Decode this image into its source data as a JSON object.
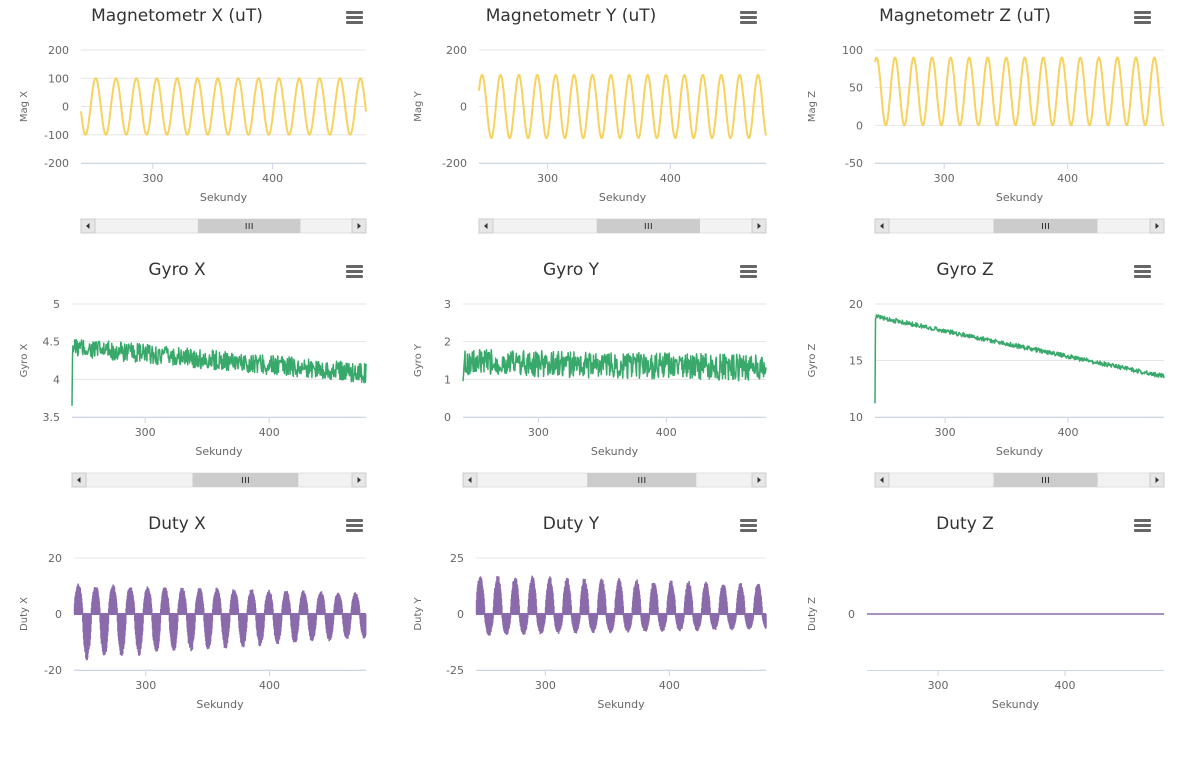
{
  "colors": {
    "magnetometer": "#f7d25e",
    "gyro": "#39a96b",
    "duty": "#8b6bab",
    "scrollbar_thumb": "#cccccc",
    "scrollbar_track": "#f2f2f2"
  },
  "icons": {
    "menu": "hamburger-menu-icon",
    "scroll_left": "arrow-left-icon",
    "scroll_right": "arrow-right-icon",
    "scroll_grip": "grip-icon"
  },
  "chart_data": [
    {
      "id": "magX",
      "type": "line",
      "title": "Magnetometr X (uT)",
      "xlabel": "Sekundy",
      "ylabel": "Mag X",
      "xlim": [
        240,
        478
      ],
      "ylim": [
        -200,
        200
      ],
      "xticks": [
        300,
        400
      ],
      "yticks": [
        -200,
        -100,
        0,
        100,
        200
      ],
      "series": [
        {
          "name": "Mag X",
          "signal": "sine",
          "amplitude": 100,
          "offset": 0,
          "period_s": 17,
          "phase_deg": 190
        }
      ],
      "scrollbar": true
    },
    {
      "id": "magY",
      "type": "line",
      "title": "Magnetometr Y (uT)",
      "xlabel": "Sekundy",
      "ylabel": "Mag Y",
      "xlim": [
        244,
        478
      ],
      "ylim": [
        -200,
        200
      ],
      "xticks": [
        300,
        400
      ],
      "yticks": [
        -200,
        0,
        200
      ],
      "series": [
        {
          "name": "Mag Y",
          "signal": "sine",
          "amplitude": 112,
          "offset": 0,
          "period_s": 15,
          "phase_deg": 30
        }
      ],
      "scrollbar": true
    },
    {
      "id": "magZ",
      "type": "line",
      "title": "Magnetometr Z (uT)",
      "xlabel": "Sekundy",
      "ylabel": "Mag Z",
      "xlim": [
        244,
        478
      ],
      "ylim": [
        -50,
        100
      ],
      "xticks": [
        300,
        400
      ],
      "yticks": [
        -50,
        0,
        50,
        100
      ],
      "series": [
        {
          "name": "Mag Z",
          "signal": "sine",
          "amplitude": 45,
          "offset": 45,
          "period_s": 15,
          "phase_deg": 60
        }
      ],
      "scrollbar": true
    },
    {
      "id": "gyroX",
      "type": "line",
      "title": "Gyro X",
      "xlabel": "Sekundy",
      "ylabel": "Gyro X",
      "xlim": [
        241,
        478
      ],
      "ylim": [
        3.5,
        5
      ],
      "xticks": [
        300,
        400
      ],
      "yticks": [
        3.5,
        4,
        4.5,
        5
      ],
      "series": [
        {
          "name": "Gyro X",
          "signal": "noise",
          "start": 4.42,
          "end": 4.08,
          "noise": 0.13,
          "spike_from": 3.65
        }
      ],
      "scrollbar": true
    },
    {
      "id": "gyroY",
      "type": "line",
      "title": "Gyro Y",
      "xlabel": "Sekundy",
      "ylabel": "Gyro Y",
      "xlim": [
        241,
        478
      ],
      "ylim": [
        0,
        3
      ],
      "xticks": [
        300,
        400
      ],
      "yticks": [
        0,
        1,
        2,
        3
      ],
      "series": [
        {
          "name": "Gyro Y",
          "signal": "noise",
          "start": 1.45,
          "end": 1.3,
          "noise": 0.35,
          "spike_from": 0.95
        }
      ],
      "scrollbar": true
    },
    {
      "id": "gyroZ",
      "type": "line",
      "title": "Gyro Z",
      "xlabel": "Sekundy",
      "ylabel": "Gyro Z",
      "xlim": [
        243,
        478
      ],
      "ylim": [
        10,
        20
      ],
      "xticks": [
        300,
        400
      ],
      "yticks": [
        10,
        15,
        20
      ],
      "series": [
        {
          "name": "Gyro Z",
          "signal": "noise",
          "start": 18.9,
          "end": 13.6,
          "noise": 0.2,
          "spike_from": 11.2
        }
      ],
      "scrollbar": true
    },
    {
      "id": "dutyX",
      "type": "area",
      "title": "Duty X",
      "xlabel": "Sekundy",
      "ylabel": "Duty X",
      "xlim": [
        242,
        478
      ],
      "ylim": [
        -20,
        20
      ],
      "xticks": [
        300,
        400
      ],
      "yticks": [
        -20,
        0,
        20
      ],
      "series": [
        {
          "name": "Duty X",
          "signal": "envelope",
          "pos_start": 11,
          "pos_end": 8,
          "neg_start": -17,
          "neg_end": -9,
          "period_s": 14
        }
      ],
      "scrollbar": false
    },
    {
      "id": "dutyY",
      "type": "area",
      "title": "Duty Y",
      "xlabel": "Sekundy",
      "ylabel": "Duty Y",
      "xlim": [
        244,
        478
      ],
      "ylim": [
        -25,
        25
      ],
      "xticks": [
        300,
        400
      ],
      "yticks": [
        -25,
        0,
        25
      ],
      "series": [
        {
          "name": "Duty Y",
          "signal": "envelope",
          "pos_start": 18,
          "pos_end": 14,
          "neg_start": -10,
          "neg_end": -7,
          "period_s": 14
        }
      ],
      "scrollbar": false
    },
    {
      "id": "dutyZ",
      "type": "line",
      "title": "Duty Z",
      "xlabel": "Sekundy",
      "ylabel": "Duty Z",
      "xlim": [
        244,
        478
      ],
      "ylim": [
        -1,
        1
      ],
      "xticks": [
        300,
        400
      ],
      "yticks": [
        0
      ],
      "series": [
        {
          "name": "Duty Z",
          "signal": "flat",
          "value": 0
        }
      ],
      "scrollbar": false
    }
  ]
}
